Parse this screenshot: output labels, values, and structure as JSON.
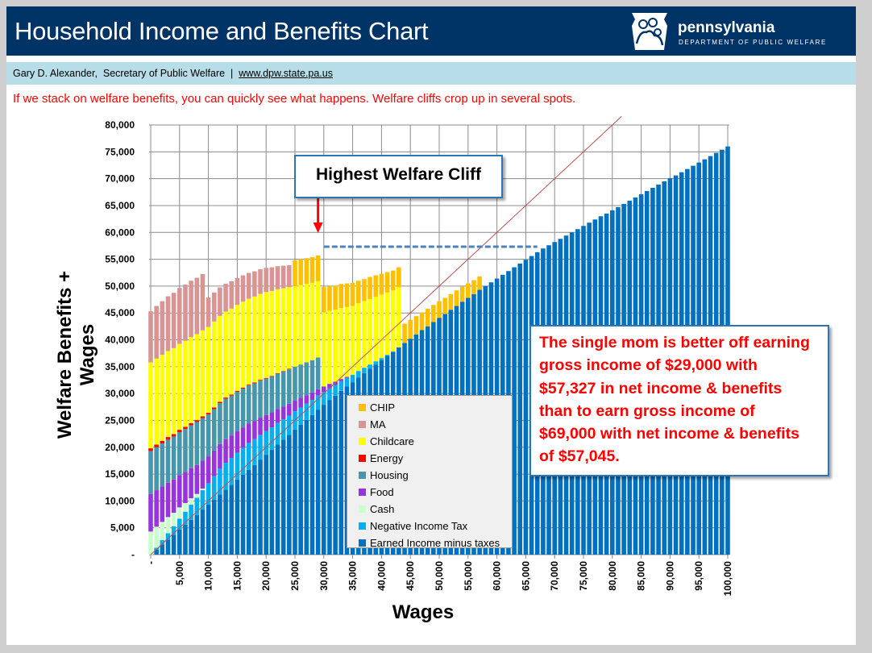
{
  "header": {
    "title": "Household Income and Benefits Chart",
    "brand": "pennsylvania",
    "department": "DEPARTMENT OF PUBLIC WELFARE",
    "logo_icon": "keystone-family-logo"
  },
  "subheader": {
    "author": "Gary D. Alexander,  Secretary of Public Welfare  |  ",
    "link": "www.dpw.state.pa.us"
  },
  "intro": "If we stack on welfare benefits, you can quickly see what happens. Welfare cliffs crop up in several spots.",
  "annotations": {
    "cliff_label": "Highest Welfare Cliff",
    "note_lines": [
      "The single mom is better off earning",
      "gross income of $29,000 with",
      "$57,327 in net income & benefits",
      "than to earn gross income of",
      "$69,000 with net income & benefits",
      "of $57,045."
    ],
    "cliff_wage": 29000,
    "dashed_level": 57327,
    "dashed_range": [
      30000,
      67000
    ]
  },
  "chart_data": {
    "type": "bar",
    "stacked": true,
    "xlabel": "Wages",
    "ylabel": "Welfare Benefits + Wages",
    "ylim": [
      0,
      80000
    ],
    "xlim": [
      0,
      100000
    ],
    "grid": true,
    "legend_placement": "center-bottom",
    "reference_line": "y = x",
    "reference_line_color": "#c0504d",
    "y_ticks": [
      "-",
      "5,000",
      "10,000",
      "15,000",
      "20,000",
      "25,000",
      "30,000",
      "35,000",
      "40,000",
      "45,000",
      "50,000",
      "55,000",
      "60,000",
      "65,000",
      "70,000",
      "75,000",
      "80,000"
    ],
    "x_ticks": [
      "-",
      "5,000",
      "10,000",
      "15,000",
      "20,000",
      "25,000",
      "30,000",
      "35,000",
      "40,000",
      "45,000",
      "50,000",
      "55,000",
      "60,000",
      "65,000",
      "70,000",
      "75,000",
      "80,000",
      "85,000",
      "90,000",
      "95,000",
      "100,000"
    ],
    "x_start": 0,
    "x_step": 1000,
    "legend_order": [
      "CHIP",
      "MA",
      "Childcare",
      "Energy",
      "Housing",
      "Food",
      "Cash",
      "Negative Income Tax",
      "Earned Income minus taxes"
    ],
    "series": [
      {
        "name": "Earned Income minus taxes",
        "color": "#0070c0",
        "values": [
          0,
          900,
          1900,
          2800,
          3700,
          4700,
          5600,
          6500,
          7400,
          8400,
          9300,
          10200,
          11200,
          12100,
          13000,
          14000,
          14900,
          15800,
          16700,
          17700,
          18600,
          19500,
          20500,
          21400,
          22300,
          23300,
          24200,
          25100,
          26000,
          27000,
          27900,
          28800,
          29600,
          30500,
          31300,
          32100,
          33000,
          33800,
          34600,
          35400,
          36200,
          37000,
          37800,
          38600,
          39400,
          40200,
          41000,
          41800,
          42500,
          43300,
          44100,
          44800,
          45600,
          46300,
          47100,
          47800,
          48500,
          49300,
          50000,
          50700,
          51400,
          52100,
          52800,
          53500,
          54200,
          54900,
          55600,
          56300,
          57000,
          57600,
          58200,
          58800,
          59400,
          60000,
          60600,
          61200,
          61800,
          62400,
          63000,
          63500,
          64100,
          64700,
          65300,
          65900,
          66500,
          67100,
          67700,
          68300,
          68900,
          69500,
          70100,
          70600,
          71200,
          71800,
          72400,
          73000,
          73600,
          74200,
          74800,
          75400,
          76000
        ]
      },
      {
        "name": "Negative Income Tax",
        "color": "#00b0f0",
        "values": [
          0,
          400,
          800,
          1200,
          1600,
          2000,
          2400,
          2800,
          3200,
          3600,
          4000,
          4400,
          4800,
          5000,
          5000,
          5000,
          5000,
          5000,
          4800,
          4600,
          4400,
          4200,
          4000,
          3800,
          3600,
          3400,
          3200,
          3000,
          2800,
          2600,
          2400,
          2200,
          2000,
          1800,
          1600,
          1400,
          1200,
          1000,
          800,
          600,
          400,
          200,
          0,
          0,
          0,
          0,
          0,
          0,
          0,
          0,
          0,
          0,
          0,
          0,
          0,
          0,
          0,
          0,
          0,
          0,
          0,
          0,
          0,
          0,
          0,
          0,
          0,
          0,
          0,
          0,
          0,
          0,
          0,
          0,
          0,
          0,
          0,
          0,
          0,
          0,
          0,
          0,
          0,
          0,
          0,
          0,
          0,
          0,
          0,
          0,
          0,
          0,
          0,
          0,
          0,
          0,
          0,
          0,
          0,
          0,
          0
        ]
      },
      {
        "name": "Cash",
        "color": "#ccffcc",
        "values": [
          4300,
          3900,
          3400,
          3000,
          2500,
          2100,
          1600,
          1200,
          700,
          300,
          0,
          0,
          0,
          0,
          0,
          0,
          0,
          0,
          0,
          0,
          0,
          0,
          0,
          0,
          0,
          0,
          0,
          0,
          0,
          0,
          0,
          0,
          0,
          0,
          0,
          0,
          0,
          0,
          0,
          0,
          0,
          0,
          0,
          0,
          0,
          0,
          0,
          0,
          0,
          0,
          0,
          0,
          0,
          0,
          0,
          0,
          0,
          0,
          0,
          0,
          0,
          0,
          0,
          0,
          0,
          0,
          0,
          0,
          0,
          0,
          0,
          0,
          0,
          0,
          0,
          0,
          0,
          0,
          0,
          0,
          0,
          0,
          0,
          0,
          0,
          0,
          0,
          0,
          0,
          0,
          0,
          0,
          0,
          0,
          0,
          0,
          0,
          0,
          0,
          0,
          0
        ]
      },
      {
        "name": "Food",
        "color": "#9933dd",
        "values": [
          7000,
          6800,
          6600,
          6400,
          6200,
          6000,
          5800,
          5600,
          5400,
          5200,
          5000,
          4800,
          4600,
          4400,
          4200,
          4000,
          3800,
          3600,
          3400,
          3200,
          3000,
          2800,
          2600,
          2400,
          2200,
          2000,
          1800,
          1600,
          1400,
          1200,
          1000,
          800,
          600,
          400,
          200,
          0,
          0,
          0,
          0,
          0,
          0,
          0,
          0,
          0,
          0,
          0,
          0,
          0,
          0,
          0,
          0,
          0,
          0,
          0,
          0,
          0,
          0,
          0,
          0,
          0,
          0,
          0,
          0,
          0,
          0,
          0,
          0,
          0,
          0,
          0,
          0,
          0,
          0,
          0,
          0,
          0,
          0,
          0,
          0,
          0,
          0,
          0,
          0,
          0,
          0,
          0,
          0,
          0,
          0,
          0,
          0,
          0,
          0,
          0,
          0,
          0,
          0,
          0,
          0,
          0,
          0
        ]
      },
      {
        "name": "Housing",
        "color": "#4797aa",
        "values": [
          8000,
          8000,
          8000,
          8000,
          8000,
          8000,
          8000,
          8000,
          8000,
          7900,
          7800,
          7700,
          7600,
          7500,
          7400,
          7300,
          7200,
          7100,
          7000,
          6900,
          6800,
          6700,
          6600,
          6500,
          6400,
          6300,
          6200,
          6100,
          6000,
          5900,
          0,
          0,
          0,
          0,
          0,
          0,
          0,
          0,
          0,
          0,
          0,
          0,
          0,
          0,
          0,
          0,
          0,
          0,
          0,
          0,
          0,
          0,
          0,
          0,
          0,
          0,
          0,
          0,
          0,
          0,
          0,
          0,
          0,
          0,
          0,
          0,
          0,
          0,
          0,
          0,
          0,
          0,
          0,
          0,
          0,
          0,
          0,
          0,
          0,
          0,
          0,
          0,
          0,
          0,
          0,
          0,
          0,
          0,
          0,
          0,
          0,
          0,
          0,
          0,
          0,
          0,
          0,
          0,
          0,
          0,
          0
        ]
      },
      {
        "name": "Energy",
        "color": "#ff0000",
        "values": [
          500,
          500,
          500,
          500,
          450,
          450,
          400,
          400,
          350,
          350,
          300,
          300,
          250,
          250,
          200,
          200,
          200,
          150,
          150,
          150,
          100,
          100,
          100,
          100,
          100,
          0,
          0,
          0,
          0,
          0,
          0,
          0,
          0,
          0,
          0,
          0,
          0,
          0,
          0,
          0,
          0,
          0,
          0,
          0,
          0,
          0,
          0,
          0,
          0,
          0,
          0,
          0,
          0,
          0,
          0,
          0,
          0,
          0,
          0,
          0,
          0,
          0,
          0,
          0,
          0,
          0,
          0,
          0,
          0,
          0,
          0,
          0,
          0,
          0,
          0,
          0,
          0,
          0,
          0,
          0,
          0,
          0,
          0,
          0,
          0,
          0,
          0,
          0,
          0,
          0,
          0,
          0,
          0,
          0,
          0,
          0,
          0,
          0,
          0,
          0,
          0
        ]
      },
      {
        "name": "Childcare",
        "color": "#ffff00",
        "values": [
          16000,
          16000,
          16000,
          16000,
          16000,
          16000,
          16000,
          16000,
          16000,
          16000,
          16000,
          16000,
          16000,
          16000,
          16000,
          16000,
          16000,
          16000,
          16000,
          16000,
          16000,
          15800,
          15600,
          15400,
          15200,
          15000,
          14800,
          14600,
          14400,
          14200,
          13800,
          13600,
          13400,
          13200,
          13000,
          12800,
          12600,
          12400,
          12200,
          12000,
          11800,
          11600,
          11400,
          11200,
          0,
          0,
          0,
          0,
          0,
          0,
          0,
          0,
          0,
          0,
          0,
          0,
          0,
          0,
          0,
          0,
          0,
          0,
          0,
          0,
          0,
          0,
          0,
          0,
          0,
          0,
          0,
          0,
          0,
          0,
          0,
          0,
          0,
          0,
          0,
          0,
          0,
          0,
          0,
          0,
          0,
          0,
          0,
          0,
          0,
          0,
          0,
          0,
          0,
          0,
          0,
          0,
          0,
          0,
          0,
          0,
          0
        ]
      },
      {
        "name": "MA",
        "color": "#d99594",
        "values": [
          9500,
          9800,
          10000,
          10200,
          10300,
          10400,
          10500,
          10500,
          10500,
          10500,
          5500,
          5400,
          5300,
          5200,
          5100,
          5000,
          4900,
          4800,
          4700,
          4600,
          4500,
          4400,
          4300,
          4200,
          4100,
          0,
          0,
          0,
          0,
          0,
          0,
          0,
          0,
          0,
          0,
          0,
          0,
          0,
          0,
          0,
          0,
          0,
          0,
          0,
          0,
          0,
          0,
          0,
          0,
          0,
          0,
          0,
          0,
          0,
          0,
          0,
          0,
          0,
          0,
          0,
          0,
          0,
          0,
          0,
          0,
          0,
          0,
          0,
          0,
          0,
          0,
          0,
          0,
          0,
          0,
          0,
          0,
          0,
          0,
          0,
          0,
          0,
          0,
          0,
          0,
          0,
          0,
          0,
          0,
          0,
          0,
          0,
          0,
          0,
          0,
          0,
          0,
          0,
          0,
          0,
          0
        ]
      },
      {
        "name": "CHIP",
        "color": "#ffc000",
        "values": [
          0,
          0,
          0,
          0,
          0,
          0,
          0,
          0,
          0,
          0,
          0,
          0,
          0,
          0,
          0,
          0,
          0,
          0,
          0,
          0,
          0,
          0,
          0,
          0,
          0,
          4800,
          4800,
          4800,
          4800,
          4800,
          4700,
          4600,
          4500,
          4500,
          4400,
          4300,
          4200,
          4100,
          4100,
          4000,
          3900,
          3800,
          3700,
          3700,
          3600,
          3500,
          3400,
          3300,
          3300,
          3200,
          3100,
          3000,
          2900,
          2900,
          2800,
          2700,
          2600,
          2500,
          0,
          0,
          0,
          0,
          0,
          0,
          0,
          0,
          0,
          0,
          0,
          0,
          0,
          0,
          0,
          0,
          0,
          0,
          0,
          0,
          0,
          0,
          0,
          0,
          0,
          0,
          0,
          0,
          0,
          0,
          0,
          0,
          0,
          0,
          0,
          0,
          0,
          0,
          0,
          0,
          0
        ]
      }
    ]
  }
}
